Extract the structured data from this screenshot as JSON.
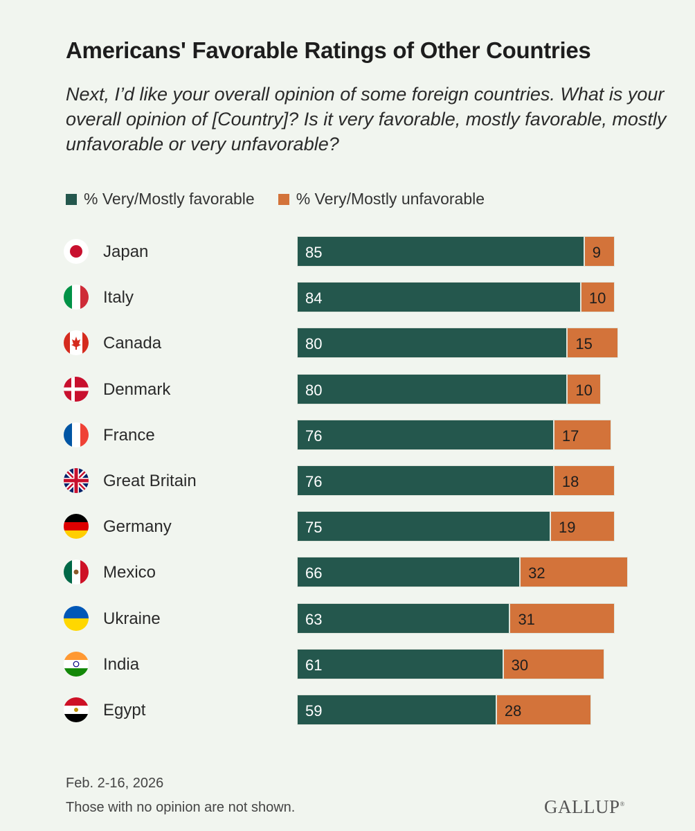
{
  "header": {
    "title": "Americans' Favorable Ratings of Other Countries",
    "subtitle": "Next, I’d like your overall opinion of some foreign countries. What is your overall opinion of [Country]? Is it very favorable, mostly favorable, mostly unfavorable or very unfavorable?"
  },
  "colors": {
    "favorable": "#24574d",
    "unfavorable": "#d3733a",
    "background": "#f1f5ef"
  },
  "chart_data": {
    "type": "bar",
    "orientation": "horizontal-stacked",
    "title": "Americans' Favorable Ratings of Other Countries",
    "categories": [
      "Japan",
      "Italy",
      "Canada",
      "Denmark",
      "France",
      "Great Britain",
      "Germany",
      "Mexico",
      "Ukraine",
      "India",
      "Egypt"
    ],
    "flag_icons": [
      "japan-flag-icon",
      "italy-flag-icon",
      "canada-flag-icon",
      "denmark-flag-icon",
      "france-flag-icon",
      "great-britain-flag-icon",
      "germany-flag-icon",
      "mexico-flag-icon",
      "ukraine-flag-icon",
      "india-flag-icon",
      "egypt-flag-icon"
    ],
    "series": [
      {
        "name": "% Very/Mostly favorable",
        "values": [
          85,
          84,
          80,
          80,
          76,
          76,
          75,
          66,
          63,
          61,
          59
        ]
      },
      {
        "name": "% Very/Mostly unfavorable",
        "values": [
          9,
          10,
          15,
          10,
          17,
          18,
          19,
          32,
          31,
          30,
          28
        ]
      }
    ],
    "xlim": [
      0,
      100
    ],
    "legend_position": "top-left"
  },
  "footer": {
    "date": "Feb. 2-16, 2026",
    "note": "Those with no opinion are not shown.",
    "logo": "GALLUP"
  }
}
